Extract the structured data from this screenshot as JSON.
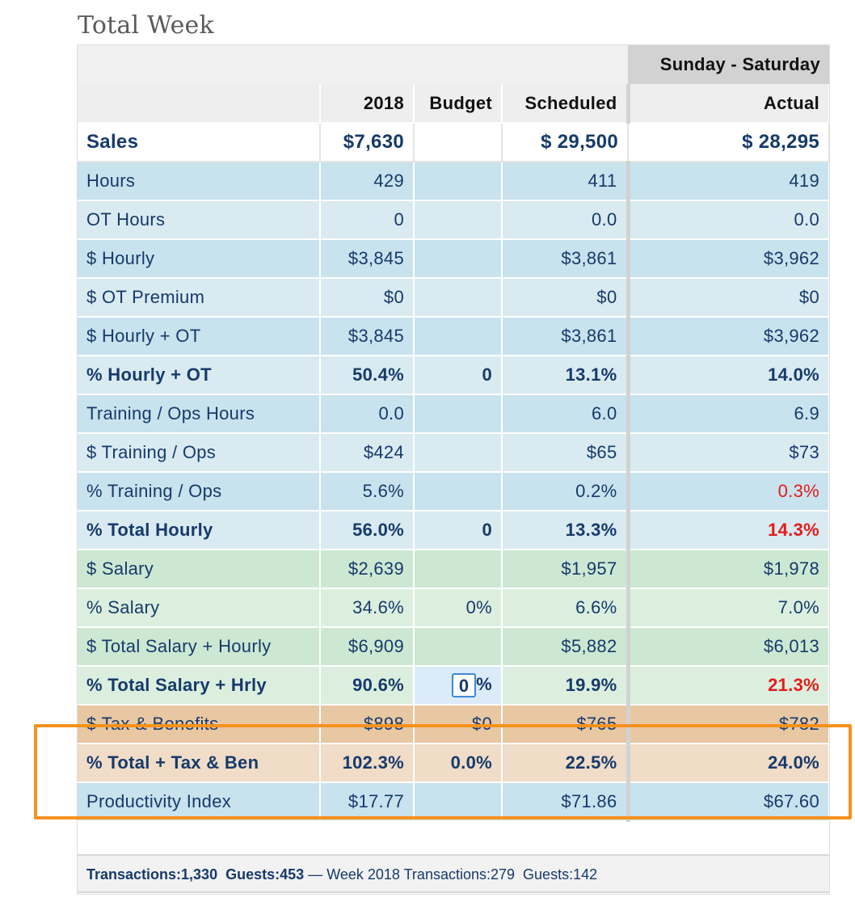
{
  "title": "Total Week",
  "range_label": "Sunday - Saturday",
  "columns": [
    "",
    "2018",
    "Budget",
    "Scheduled",
    "Actual"
  ],
  "sales": {
    "label": "Sales",
    "y2018": "$7,630",
    "budget": "",
    "scheduled": "$ 29,500",
    "actual": "$ 28,295"
  },
  "rows": [
    {
      "label": "Hours",
      "y2018": "429",
      "budget": "",
      "scheduled": "411",
      "actual": "419"
    },
    {
      "label": "OT Hours",
      "y2018": "0",
      "budget": "",
      "scheduled": "0.0",
      "actual": "0.0"
    },
    {
      "label": "$ Hourly",
      "y2018": "$3,845",
      "budget": "",
      "scheduled": "$3,861",
      "actual": "$3,962"
    },
    {
      "label": "$ OT Premium",
      "y2018": "$0",
      "budget": "",
      "scheduled": "$0",
      "actual": "$0"
    },
    {
      "label": "$ Hourly + OT",
      "y2018": "$3,845",
      "budget": "",
      "scheduled": "$3,861",
      "actual": "$3,962"
    },
    {
      "label": "% Hourly + OT",
      "y2018": "50.4%",
      "budget": "0",
      "scheduled": "13.1%",
      "actual": "14.0%"
    },
    {
      "label": "Training / Ops Hours",
      "y2018": "0.0",
      "budget": "",
      "scheduled": "6.0",
      "actual": "6.9"
    },
    {
      "label": "$ Training / Ops",
      "y2018": "$424",
      "budget": "",
      "scheduled": "$65",
      "actual": "$73"
    },
    {
      "label": "% Training / Ops",
      "y2018": "5.6%",
      "budget": "",
      "scheduled": "0.2%",
      "actual": "0.3%"
    },
    {
      "label": "% Total Hourly",
      "y2018": "56.0%",
      "budget": "0",
      "scheduled": "13.3%",
      "actual": "14.3%"
    },
    {
      "label": "$ Salary",
      "y2018": "$2,639",
      "budget": "",
      "scheduled": "$1,957",
      "actual": "$1,978"
    },
    {
      "label": "% Salary",
      "y2018": "34.6%",
      "budget": "0%",
      "scheduled": "6.6%",
      "actual": "7.0%"
    },
    {
      "label": "$ Total Salary + Hourly",
      "y2018": "$6,909",
      "budget": "",
      "scheduled": "$5,882",
      "actual": "$6,013"
    },
    {
      "label": "% Total Salary + Hrly",
      "y2018": "90.6%",
      "budget": "0",
      "budget_suffix": "%",
      "scheduled": "19.9%",
      "actual": "21.3%"
    },
    {
      "label": "$ Tax & Benefits",
      "y2018": "$898",
      "budget": "$0",
      "scheduled": "$765",
      "actual": "$782"
    },
    {
      "label": "% Total + Tax & Ben",
      "y2018": "102.3%",
      "budget": "0.0%",
      "scheduled": "22.5%",
      "actual": "24.0%"
    },
    {
      "label": "Productivity Index",
      "y2018": "$17.77",
      "budget": "",
      "scheduled": "$71.86",
      "actual": "$67.60"
    }
  ],
  "footer": {
    "transactions_label": "Transactions:1,330",
    "guests_label": "Guests:453",
    "dash": "—",
    "week_label": "Week 2018 Transactions:279",
    "week_guests": "Guests:142"
  },
  "colors": {
    "accent_orange": "#f6921e",
    "alert_red": "#e41b1b",
    "text_navy": "#163a6b"
  }
}
